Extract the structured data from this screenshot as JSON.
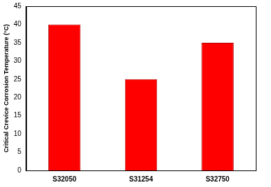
{
  "chart_data": {
    "type": "bar",
    "y_label": "Critical Crevice Corrosion Temperature (°C)",
    "categories": [
      "S32050",
      "S31254",
      "S32750"
    ],
    "values": [
      40,
      25,
      35
    ],
    "color": "#ff0000",
    "ylim": [
      0,
      45
    ],
    "yticks": [
      0,
      5,
      10,
      15,
      20,
      25,
      30,
      35,
      40,
      45
    ],
    "grid": false
  }
}
